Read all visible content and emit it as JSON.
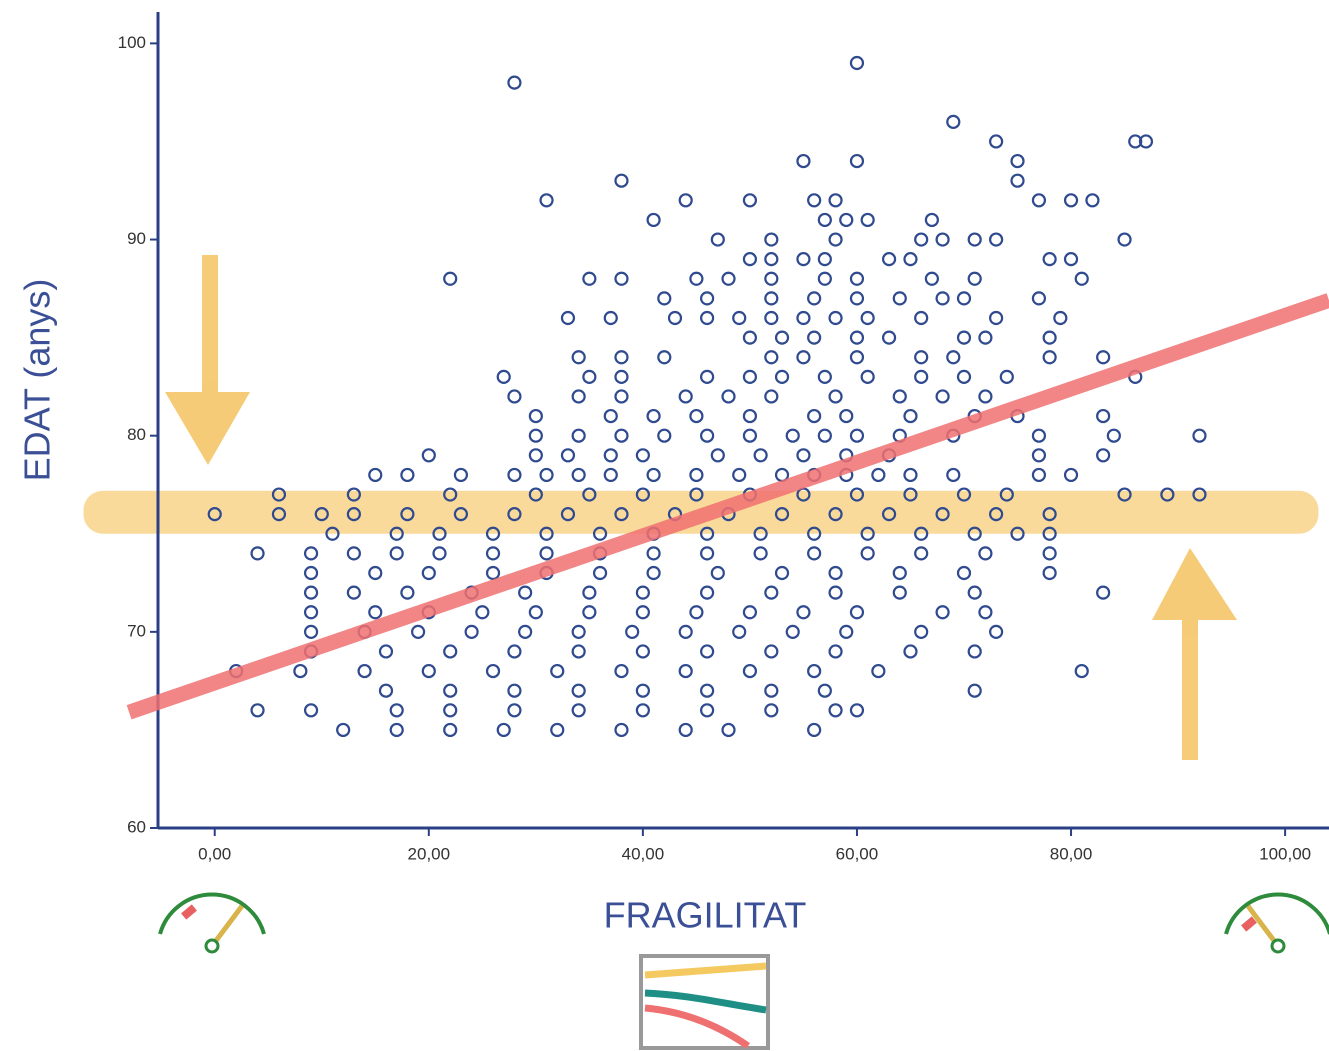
{
  "chart_data": {
    "type": "scatter",
    "x_label": "FRAGILITAT",
    "y_label": "EDAT (anys)",
    "xlim": [
      -5.3,
      104.1
    ],
    "ylim": [
      60,
      101.6
    ],
    "xticks": [
      {
        "value": 0,
        "label": "0,00"
      },
      {
        "value": 20,
        "label": "20,00"
      },
      {
        "value": 40,
        "label": "40,00"
      },
      {
        "value": 60,
        "label": "60,00"
      },
      {
        "value": 80,
        "label": "80,00"
      },
      {
        "value": 100,
        "label": "100,00"
      }
    ],
    "yticks": [
      60,
      70,
      80,
      90,
      100
    ],
    "color": "#2f4a8f",
    "x": [
      60,
      28,
      69,
      73,
      86,
      87,
      55,
      60,
      75,
      38,
      75,
      31,
      44,
      50,
      56,
      58,
      77,
      80,
      82,
      41,
      57,
      59,
      61,
      67,
      47,
      52,
      58,
      66,
      68,
      71,
      73,
      85,
      50,
      52,
      55,
      57,
      63,
      65,
      78,
      80,
      22,
      35,
      38,
      45,
      48,
      52,
      57,
      60,
      67,
      71,
      81,
      42,
      46,
      52,
      56,
      60,
      64,
      68,
      70,
      77,
      33,
      37,
      43,
      46,
      49,
      52,
      55,
      58,
      61,
      66,
      73,
      79,
      50,
      53,
      56,
      60,
      63,
      70,
      72,
      78,
      34,
      38,
      42,
      52,
      55,
      60,
      66,
      69,
      78,
      83,
      27,
      35,
      38,
      46,
      50,
      53,
      57,
      61,
      66,
      70,
      74,
      86,
      28,
      34,
      38,
      44,
      48,
      52,
      58,
      64,
      68,
      72,
      30,
      37,
      41,
      45,
      50,
      56,
      59,
      65,
      71,
      75,
      83,
      30,
      34,
      38,
      42,
      46,
      50,
      54,
      57,
      60,
      64,
      69,
      77,
      84,
      92,
      20,
      30,
      33,
      37,
      40,
      47,
      51,
      55,
      59,
      63,
      77,
      83,
      15,
      18,
      23,
      28,
      31,
      34,
      37,
      41,
      45,
      49,
      53,
      56,
      59,
      62,
      65,
      69,
      77,
      80,
      6,
      13,
      22,
      30,
      35,
      40,
      45,
      50,
      55,
      60,
      65,
      70,
      74,
      85,
      89,
      92,
      0,
      6,
      10,
      13,
      18,
      23,
      28,
      33,
      38,
      43,
      48,
      53,
      58,
      63,
      68,
      73,
      78,
      11,
      17,
      21,
      26,
      31,
      36,
      41,
      46,
      51,
      56,
      61,
      66,
      71,
      75,
      78,
      4,
      9,
      13,
      17,
      21,
      26,
      31,
      36,
      41,
      46,
      51,
      56,
      61,
      66,
      72,
      78,
      9,
      15,
      20,
      26,
      31,
      36,
      41,
      47,
      53,
      58,
      64,
      70,
      78,
      9,
      13,
      18,
      24,
      29,
      35,
      40,
      46,
      52,
      58,
      64,
      71,
      83,
      9,
      15,
      20,
      25,
      30,
      35,
      40,
      45,
      50,
      55,
      60,
      68,
      72,
      9,
      14,
      19,
      24,
      29,
      34,
      39,
      44,
      49,
      54,
      59,
      66,
      73,
      9,
      16,
      22,
      28,
      34,
      40,
      46,
      52,
      58,
      65,
      71,
      2,
      8,
      14,
      20,
      26,
      32,
      38,
      44,
      50,
      56,
      62,
      81,
      16,
      22,
      28,
      34,
      40,
      46,
      52,
      57,
      71,
      4,
      9,
      17,
      22,
      28,
      34,
      40,
      46,
      52,
      58,
      60,
      12,
      17,
      22,
      27,
      32,
      38,
      44,
      48,
      56
    ],
    "values": [
      99,
      98,
      96,
      95,
      95,
      95,
      94,
      94,
      94,
      93,
      93,
      92,
      92,
      92,
      92,
      92,
      92,
      92,
      92,
      91,
      91,
      91,
      91,
      91,
      90,
      90,
      90,
      90,
      90,
      90,
      90,
      90,
      89,
      89,
      89,
      89,
      89,
      89,
      89,
      89,
      88,
      88,
      88,
      88,
      88,
      88,
      88,
      88,
      88,
      88,
      88,
      87,
      87,
      87,
      87,
      87,
      87,
      87,
      87,
      87,
      86,
      86,
      86,
      86,
      86,
      86,
      86,
      86,
      86,
      86,
      86,
      86,
      85,
      85,
      85,
      85,
      85,
      85,
      85,
      85,
      84,
      84,
      84,
      84,
      84,
      84,
      84,
      84,
      84,
      84,
      83,
      83,
      83,
      83,
      83,
      83,
      83,
      83,
      83,
      83,
      83,
      83,
      82,
      82,
      82,
      82,
      82,
      82,
      82,
      82,
      82,
      82,
      81,
      81,
      81,
      81,
      81,
      81,
      81,
      81,
      81,
      81,
      81,
      80,
      80,
      80,
      80,
      80,
      80,
      80,
      80,
      80,
      80,
      80,
      80,
      80,
      80,
      79,
      79,
      79,
      79,
      79,
      79,
      79,
      79,
      79,
      79,
      79,
      79,
      78,
      78,
      78,
      78,
      78,
      78,
      78,
      78,
      78,
      78,
      78,
      78,
      78,
      78,
      78,
      78,
      78,
      78,
      77,
      77,
      77,
      77,
      77,
      77,
      77,
      77,
      77,
      77,
      77,
      77,
      77,
      77,
      77,
      77,
      76,
      76,
      76,
      76,
      76,
      76,
      76,
      76,
      76,
      76,
      76,
      76,
      76,
      76,
      76,
      76,
      76,
      75,
      75,
      75,
      75,
      75,
      75,
      75,
      75,
      75,
      75,
      75,
      75,
      75,
      75,
      75,
      74,
      74,
      74,
      74,
      74,
      74,
      74,
      74,
      74,
      74,
      74,
      74,
      74,
      74,
      74,
      74,
      73,
      73,
      73,
      73,
      73,
      73,
      73,
      73,
      73,
      73,
      73,
      73,
      73,
      72,
      72,
      72,
      72,
      72,
      72,
      72,
      72,
      72,
      72,
      72,
      72,
      72,
      71,
      71,
      71,
      71,
      71,
      71,
      71,
      71,
      71,
      71,
      71,
      71,
      71,
      70,
      70,
      70,
      70,
      70,
      70,
      70,
      70,
      70,
      70,
      70,
      70,
      70,
      69,
      69,
      69,
      69,
      69,
      69,
      69,
      69,
      69,
      69,
      69,
      68,
      68,
      68,
      68,
      68,
      68,
      68,
      68,
      68,
      68,
      68,
      68,
      67,
      67,
      67,
      67,
      67,
      67,
      67,
      67,
      67,
      66,
      66,
      66,
      66,
      66,
      66,
      66,
      66,
      66,
      66,
      66,
      65,
      65,
      65,
      65,
      65,
      65,
      65,
      65,
      65
    ],
    "trend_line": {
      "x": [
        -8,
        104.1
      ],
      "values": [
        65.9,
        86.9
      ],
      "color": "#f07070"
    },
    "highlight_band": {
      "value": 76.1,
      "color": "#f8c25a"
    }
  }
}
